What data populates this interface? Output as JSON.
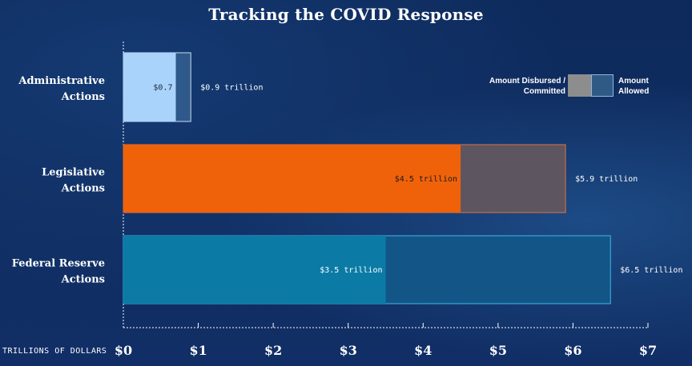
{
  "chart_data": {
    "type": "bar",
    "orientation": "horizontal",
    "title": "Tracking the COVID Response",
    "xlabel": "TRILLIONS OF DOLLARS",
    "ylabel": "",
    "xlim": [
      0,
      7
    ],
    "x_tick_labels": [
      "$0",
      "$1",
      "$2",
      "$3",
      "$4",
      "$5",
      "$6",
      "$7"
    ],
    "categories": [
      "Administrative Actions",
      "Legislative Actions",
      "Federal Reserve Actions"
    ],
    "category_lines": [
      [
        "Administrative",
        "Actions"
      ],
      [
        "Legislative",
        "Actions"
      ],
      [
        "Federal Reserve",
        "Actions"
      ]
    ],
    "series": [
      {
        "name": "Amount Disbursed / Committed",
        "values": [
          0.7,
          4.5,
          3.5
        ],
        "labels": [
          "$0.7",
          "$4.5 trillion",
          "$3.5 trillion"
        ]
      },
      {
        "name": "Amount Allowed",
        "values": [
          0.9,
          5.9,
          6.5
        ],
        "labels": [
          "$0.9 trillion",
          "$5.9 trillion",
          "$6.5 trillion"
        ]
      }
    ],
    "bar_colors": {
      "disbursed": [
        "#a9d3fb",
        "#f0620a",
        "#0b7ba6"
      ],
      "allowed": [
        "#2e598a",
        "#5d5560",
        "#135587"
      ],
      "allowed_border": [
        "#c8dcf0",
        "#e0743a",
        "#3fb8e8"
      ],
      "disbursed_text": [
        "#1a2a44",
        "#1a1a1a",
        "#ffffff"
      ]
    },
    "legend": {
      "left_label_line1": "Amount Disbursed /",
      "left_label_line2": "Committed",
      "right_label_line1": "Amount",
      "right_label_line2": "Allowed",
      "position": "top-right"
    }
  }
}
